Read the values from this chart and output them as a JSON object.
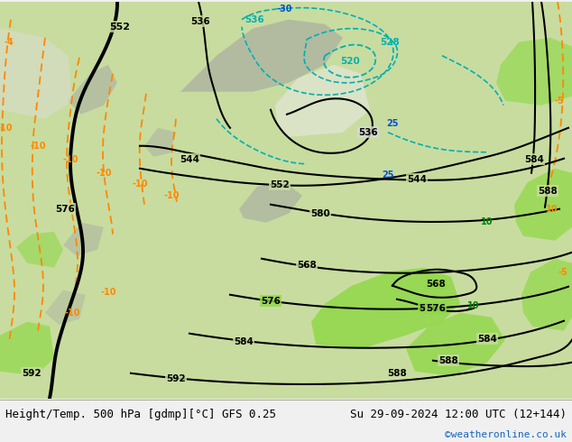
{
  "title_left": "Height/Temp. 500 hPa [gdmp][°C] GFS 0.25",
  "title_right": "Su 29-09-2024 12:00 UTC (12+144)",
  "credit": "©weatheronline.co.uk",
  "credit_color": "#1565c0",
  "text_color": "#000000",
  "bg_color": "#f0f0f0",
  "map_light_green": "#c8e8a0",
  "map_bright_green": "#78c850",
  "map_gray": "#a8a8a8",
  "map_white_gray": "#d8d8d8",
  "sea_blue": "#b8d8e8",
  "contour_black": "#000000",
  "contour_cyan": "#00c8c8",
  "contour_orange": "#ff8000",
  "contour_dkgreen": "#008000",
  "label_fontsize": 9,
  "credit_fontsize": 8
}
